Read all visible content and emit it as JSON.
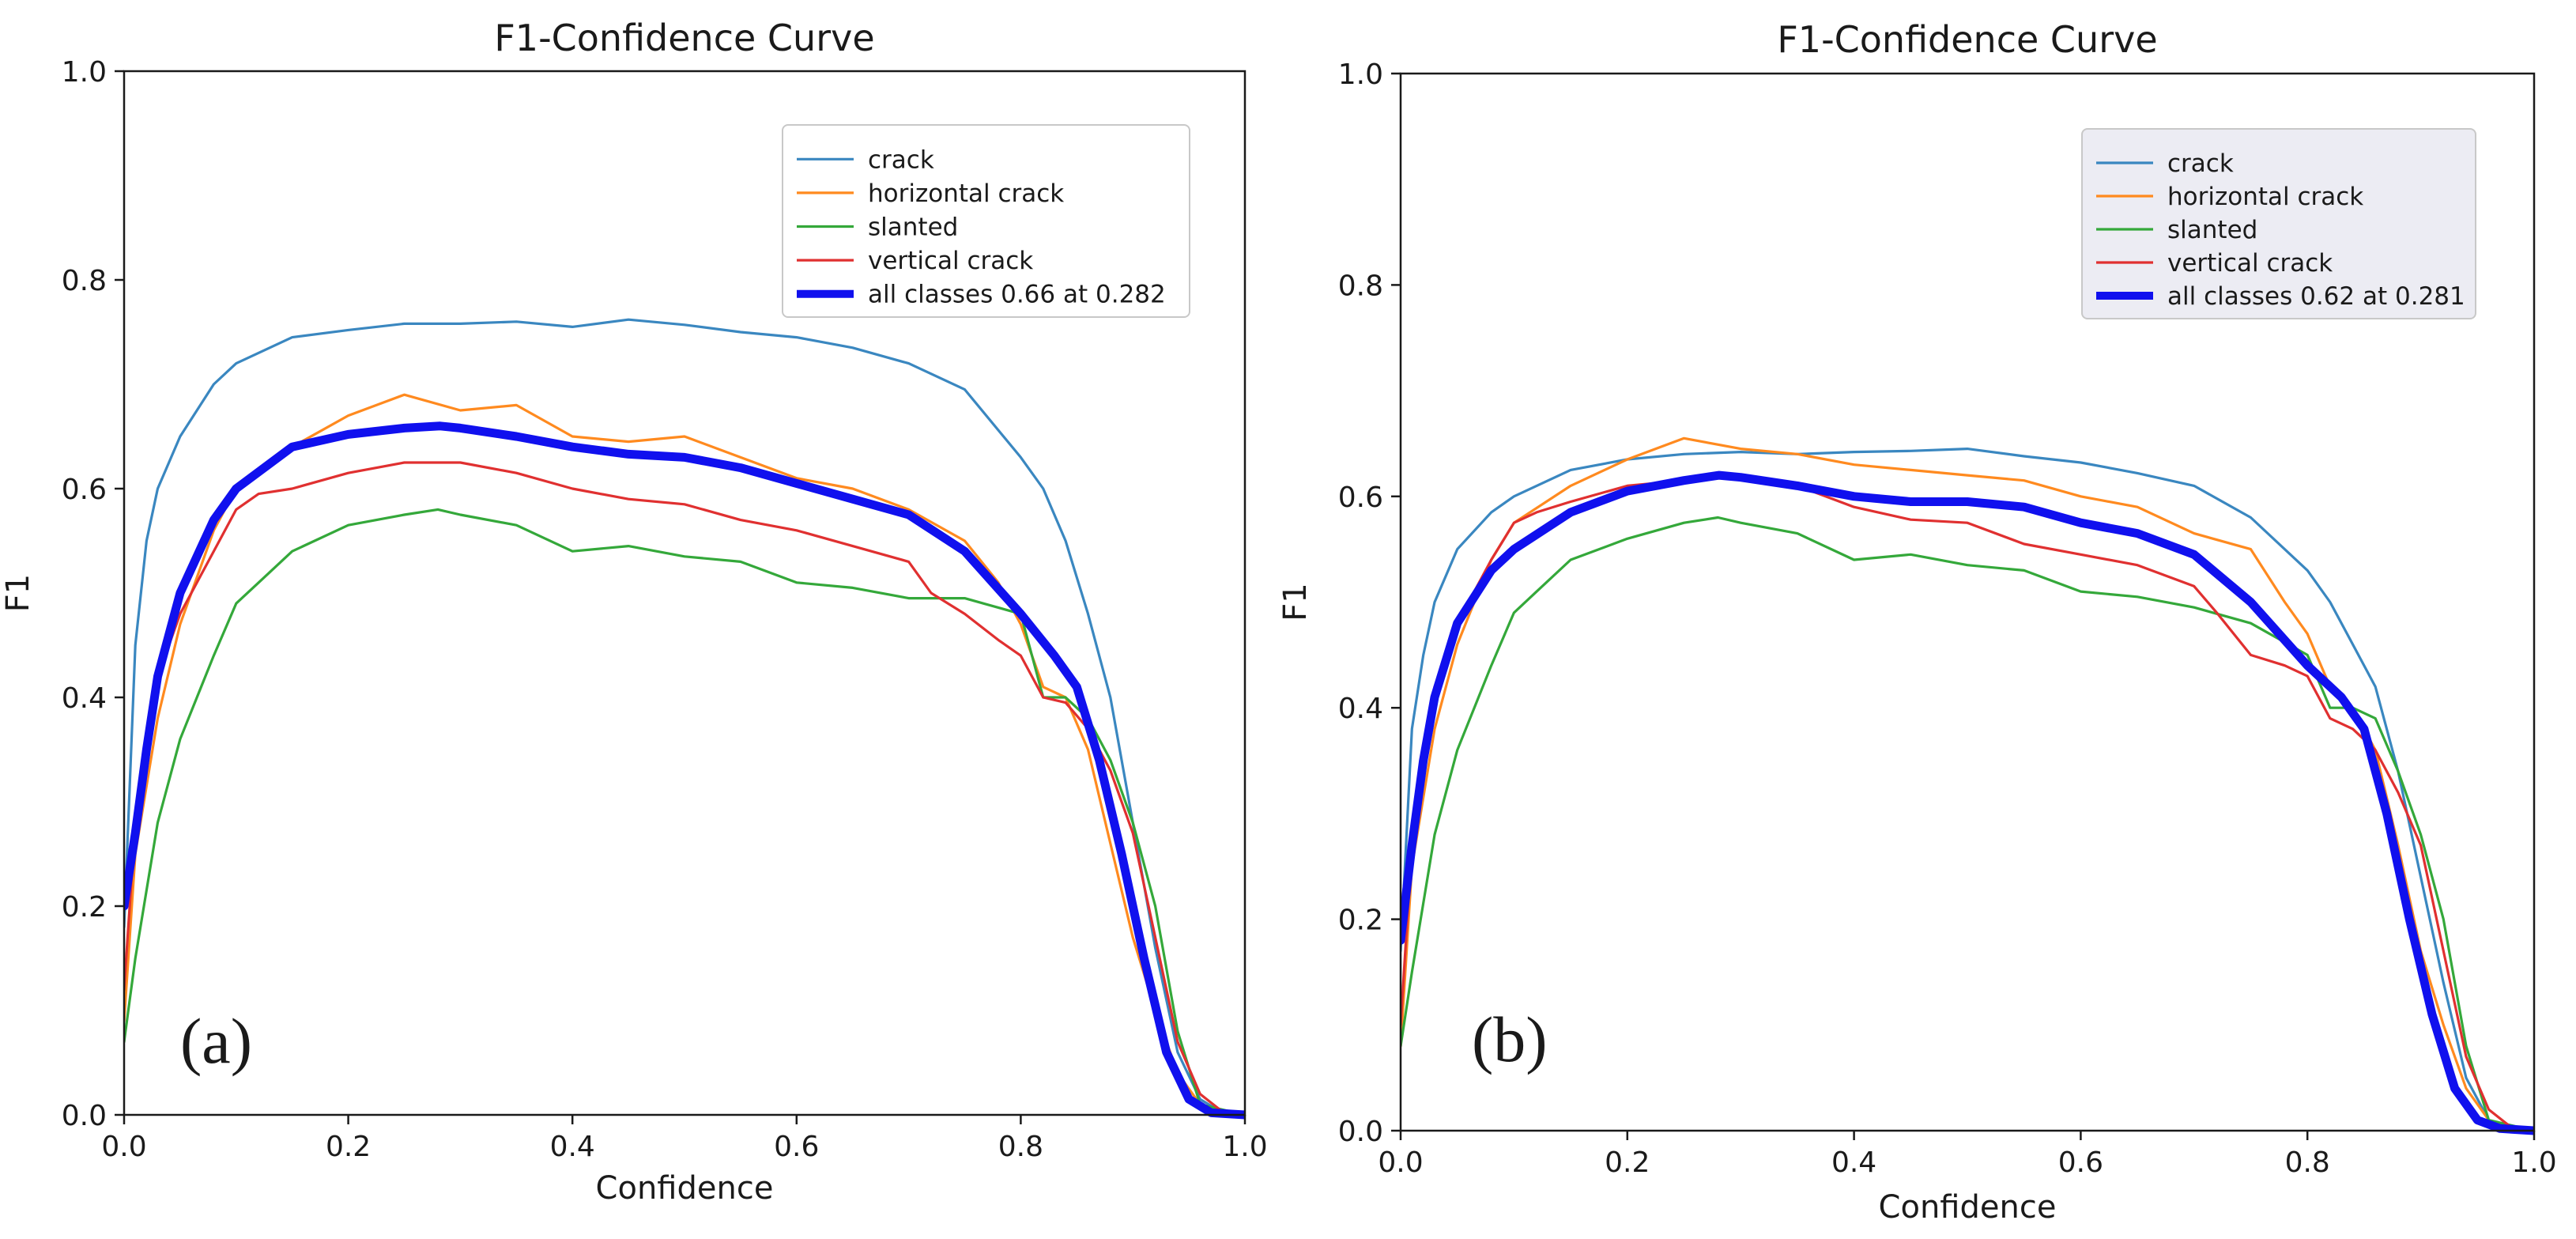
{
  "colors": {
    "crack": "#3a87c0",
    "horizontal_crack": "#ff8a1f",
    "slanted": "#34a83a",
    "vertical_crack": "#e03030",
    "all_classes": "#1010ee",
    "legend_bg_a": "#ffffff",
    "legend_bg_b": "#ececf3"
  },
  "chart_data": [
    {
      "type": "line",
      "panel_label": "(a)",
      "title": "F1-Confidence Curve",
      "xlabel": "Confidence",
      "ylabel": "F1",
      "xlim": [
        0,
        1
      ],
      "ylim": [
        0,
        1
      ],
      "xticks": [
        "0.0",
        "0.2",
        "0.4",
        "0.6",
        "0.8",
        "1.0"
      ],
      "yticks": [
        "0.0",
        "0.2",
        "0.4",
        "0.6",
        "0.8",
        "1.0"
      ],
      "grid": false,
      "legend_position": "top-right",
      "series": [
        {
          "name": "crack",
          "x": [
            0,
            0.01,
            0.02,
            0.03,
            0.05,
            0.08,
            0.1,
            0.15,
            0.2,
            0.25,
            0.3,
            0.35,
            0.4,
            0.45,
            0.5,
            0.55,
            0.6,
            0.65,
            0.7,
            0.75,
            0.8,
            0.82,
            0.84,
            0.86,
            0.88,
            0.9,
            0.92,
            0.94,
            0.96,
            0.98,
            1.0
          ],
          "y": [
            0.18,
            0.45,
            0.55,
            0.6,
            0.65,
            0.7,
            0.72,
            0.745,
            0.752,
            0.758,
            0.758,
            0.76,
            0.755,
            0.762,
            0.757,
            0.75,
            0.745,
            0.735,
            0.72,
            0.695,
            0.63,
            0.6,
            0.55,
            0.48,
            0.4,
            0.28,
            0.16,
            0.06,
            0.015,
            0.002,
            0
          ]
        },
        {
          "name": "horizontal crack",
          "x": [
            0,
            0.01,
            0.03,
            0.05,
            0.08,
            0.1,
            0.15,
            0.2,
            0.25,
            0.3,
            0.35,
            0.4,
            0.45,
            0.5,
            0.55,
            0.6,
            0.65,
            0.7,
            0.75,
            0.78,
            0.8,
            0.82,
            0.84,
            0.86,
            0.88,
            0.9,
            0.92,
            0.94,
            0.96,
            0.98,
            1.0
          ],
          "y": [
            0.09,
            0.25,
            0.38,
            0.47,
            0.56,
            0.6,
            0.64,
            0.67,
            0.69,
            0.675,
            0.68,
            0.65,
            0.645,
            0.65,
            0.63,
            0.61,
            0.6,
            0.58,
            0.55,
            0.51,
            0.47,
            0.41,
            0.4,
            0.35,
            0.26,
            0.17,
            0.1,
            0.04,
            0.01,
            0.002,
            0
          ]
        },
        {
          "name": "slanted",
          "x": [
            0,
            0.01,
            0.03,
            0.05,
            0.08,
            0.1,
            0.12,
            0.15,
            0.2,
            0.25,
            0.28,
            0.3,
            0.35,
            0.4,
            0.45,
            0.5,
            0.55,
            0.6,
            0.65,
            0.7,
            0.75,
            0.8,
            0.82,
            0.84,
            0.86,
            0.88,
            0.9,
            0.92,
            0.94,
            0.96,
            1.0
          ],
          "y": [
            0.07,
            0.15,
            0.28,
            0.36,
            0.44,
            0.49,
            0.51,
            0.54,
            0.565,
            0.575,
            0.58,
            0.575,
            0.565,
            0.54,
            0.545,
            0.535,
            0.53,
            0.51,
            0.505,
            0.495,
            0.495,
            0.48,
            0.4,
            0.4,
            0.38,
            0.34,
            0.28,
            0.2,
            0.08,
            0.01,
            0
          ]
        },
        {
          "name": "vertical crack",
          "x": [
            0,
            0.01,
            0.03,
            0.05,
            0.08,
            0.1,
            0.12,
            0.15,
            0.2,
            0.25,
            0.3,
            0.35,
            0.4,
            0.45,
            0.5,
            0.55,
            0.6,
            0.65,
            0.7,
            0.72,
            0.75,
            0.78,
            0.8,
            0.82,
            0.84,
            0.86,
            0.88,
            0.9,
            0.92,
            0.94,
            0.96,
            0.98,
            1.0
          ],
          "y": [
            0.12,
            0.28,
            0.42,
            0.48,
            0.54,
            0.58,
            0.595,
            0.6,
            0.615,
            0.625,
            0.625,
            0.615,
            0.6,
            0.59,
            0.585,
            0.57,
            0.56,
            0.545,
            0.53,
            0.5,
            0.48,
            0.455,
            0.44,
            0.4,
            0.395,
            0.37,
            0.33,
            0.27,
            0.17,
            0.07,
            0.02,
            0.003,
            0
          ]
        },
        {
          "name": "all classes 0.66 at 0.282",
          "x": [
            0,
            0.01,
            0.02,
            0.03,
            0.05,
            0.08,
            0.1,
            0.15,
            0.2,
            0.25,
            0.282,
            0.3,
            0.35,
            0.4,
            0.45,
            0.5,
            0.55,
            0.6,
            0.65,
            0.7,
            0.75,
            0.8,
            0.83,
            0.85,
            0.87,
            0.89,
            0.91,
            0.93,
            0.95,
            0.97,
            1.0
          ],
          "y": [
            0.2,
            0.27,
            0.35,
            0.42,
            0.5,
            0.57,
            0.6,
            0.64,
            0.652,
            0.658,
            0.66,
            0.658,
            0.65,
            0.64,
            0.633,
            0.63,
            0.62,
            0.605,
            0.59,
            0.575,
            0.54,
            0.48,
            0.44,
            0.41,
            0.34,
            0.25,
            0.15,
            0.06,
            0.015,
            0.002,
            0
          ]
        }
      ]
    },
    {
      "type": "line",
      "panel_label": "(b)",
      "title": "F1-Confidence Curve",
      "xlabel": "Confidence",
      "ylabel": "F1",
      "xlim": [
        0,
        1
      ],
      "ylim": [
        0,
        1
      ],
      "xticks": [
        "0.0",
        "0.2",
        "0.4",
        "0.6",
        "0.8",
        "1.0"
      ],
      "yticks": [
        "0.0",
        "0.2",
        "0.4",
        "0.6",
        "0.8",
        "1.0"
      ],
      "grid": false,
      "legend_position": "top-right",
      "series": [
        {
          "name": "crack",
          "x": [
            0,
            0.01,
            0.02,
            0.03,
            0.05,
            0.08,
            0.1,
            0.15,
            0.2,
            0.25,
            0.3,
            0.35,
            0.4,
            0.45,
            0.5,
            0.55,
            0.6,
            0.65,
            0.7,
            0.75,
            0.8,
            0.82,
            0.84,
            0.86,
            0.88,
            0.9,
            0.92,
            0.94,
            0.96,
            0.98,
            1.0
          ],
          "y": [
            0.17,
            0.38,
            0.45,
            0.5,
            0.55,
            0.585,
            0.6,
            0.625,
            0.635,
            0.64,
            0.642,
            0.64,
            0.642,
            0.643,
            0.645,
            0.638,
            0.632,
            0.622,
            0.61,
            0.58,
            0.53,
            0.5,
            0.46,
            0.42,
            0.34,
            0.24,
            0.14,
            0.05,
            0.01,
            0.002,
            0
          ]
        },
        {
          "name": "horizontal crack",
          "x": [
            0,
            0.01,
            0.03,
            0.05,
            0.08,
            0.1,
            0.15,
            0.2,
            0.25,
            0.3,
            0.35,
            0.4,
            0.45,
            0.5,
            0.55,
            0.6,
            0.65,
            0.7,
            0.75,
            0.78,
            0.8,
            0.82,
            0.84,
            0.86,
            0.88,
            0.9,
            0.92,
            0.94,
            0.96,
            0.98,
            1.0
          ],
          "y": [
            0.08,
            0.25,
            0.38,
            0.46,
            0.54,
            0.575,
            0.61,
            0.635,
            0.655,
            0.645,
            0.64,
            0.63,
            0.625,
            0.62,
            0.615,
            0.6,
            0.59,
            0.565,
            0.55,
            0.5,
            0.47,
            0.42,
            0.4,
            0.36,
            0.27,
            0.17,
            0.1,
            0.04,
            0.01,
            0.002,
            0
          ]
        },
        {
          "name": "slanted",
          "x": [
            0,
            0.01,
            0.03,
            0.05,
            0.08,
            0.1,
            0.12,
            0.15,
            0.2,
            0.25,
            0.28,
            0.3,
            0.35,
            0.4,
            0.45,
            0.5,
            0.55,
            0.6,
            0.65,
            0.7,
            0.75,
            0.8,
            0.82,
            0.84,
            0.86,
            0.88,
            0.9,
            0.92,
            0.94,
            0.96,
            1.0
          ],
          "y": [
            0.08,
            0.15,
            0.28,
            0.36,
            0.44,
            0.49,
            0.51,
            0.54,
            0.56,
            0.575,
            0.58,
            0.575,
            0.565,
            0.54,
            0.545,
            0.535,
            0.53,
            0.51,
            0.505,
            0.495,
            0.48,
            0.45,
            0.4,
            0.4,
            0.39,
            0.34,
            0.28,
            0.2,
            0.08,
            0.01,
            0
          ]
        },
        {
          "name": "vertical crack",
          "x": [
            0,
            0.01,
            0.03,
            0.05,
            0.08,
            0.1,
            0.12,
            0.15,
            0.2,
            0.25,
            0.3,
            0.35,
            0.4,
            0.45,
            0.5,
            0.55,
            0.6,
            0.65,
            0.7,
            0.72,
            0.75,
            0.78,
            0.8,
            0.82,
            0.84,
            0.86,
            0.88,
            0.9,
            0.92,
            0.94,
            0.96,
            0.98,
            1.0
          ],
          "y": [
            0.1,
            0.27,
            0.42,
            0.48,
            0.54,
            0.575,
            0.585,
            0.595,
            0.61,
            0.615,
            0.62,
            0.61,
            0.59,
            0.578,
            0.575,
            0.555,
            0.545,
            0.535,
            0.515,
            0.49,
            0.45,
            0.44,
            0.43,
            0.39,
            0.38,
            0.36,
            0.32,
            0.27,
            0.17,
            0.07,
            0.02,
            0.003,
            0
          ]
        },
        {
          "name": "all classes 0.62 at 0.281",
          "x": [
            0,
            0.01,
            0.02,
            0.03,
            0.05,
            0.08,
            0.1,
            0.15,
            0.2,
            0.25,
            0.281,
            0.3,
            0.35,
            0.4,
            0.45,
            0.5,
            0.55,
            0.6,
            0.65,
            0.7,
            0.75,
            0.8,
            0.83,
            0.85,
            0.87,
            0.89,
            0.91,
            0.93,
            0.95,
            0.97,
            1.0
          ],
          "y": [
            0.18,
            0.27,
            0.35,
            0.41,
            0.48,
            0.53,
            0.55,
            0.585,
            0.605,
            0.615,
            0.62,
            0.618,
            0.61,
            0.6,
            0.595,
            0.595,
            0.59,
            0.575,
            0.565,
            0.545,
            0.5,
            0.44,
            0.41,
            0.38,
            0.3,
            0.2,
            0.11,
            0.04,
            0.01,
            0.002,
            0
          ]
        }
      ]
    }
  ]
}
